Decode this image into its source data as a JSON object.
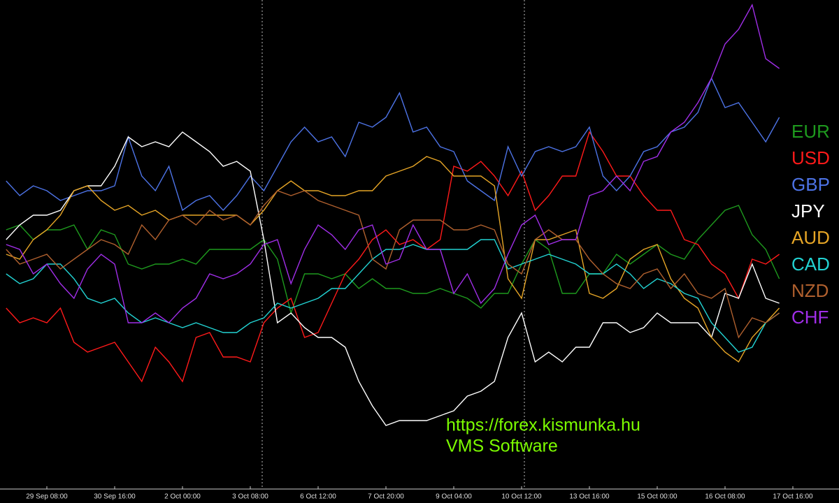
{
  "chart_data": {
    "type": "line",
    "categories": [
      null,
      null,
      null,
      "29 Sep 08:00",
      null,
      null,
      null,
      null,
      "30 Sep 16:00",
      null,
      null,
      null,
      null,
      "2 Oct 00:00",
      null,
      null,
      null,
      null,
      "3 Oct 08:00",
      null,
      null,
      null,
      null,
      "6 Oct 12:00",
      null,
      null,
      null,
      null,
      "7 Oct 20:00",
      null,
      null,
      null,
      null,
      "9 Oct 04:00",
      null,
      null,
      null,
      null,
      "10 Oct 12:00",
      null,
      null,
      null,
      null,
      "13 Oct 16:00",
      null,
      null,
      null,
      null,
      "15 Oct 00:00",
      null,
      null,
      null,
      null,
      "16 Oct 08:00",
      null,
      null,
      null,
      null,
      "17 Oct 16:00"
    ],
    "ylim": [
      0,
      100
    ],
    "series": [
      {
        "name": "EUR",
        "color": "#1e9a1e",
        "values": [
          53,
          54,
          51,
          53,
          53,
          54,
          49,
          53,
          52,
          46,
          45,
          46,
          46,
          47,
          46,
          49,
          49,
          49,
          49,
          51,
          47,
          36,
          44,
          44,
          43,
          44,
          41,
          43,
          41,
          41,
          40,
          40,
          41,
          40,
          39,
          37,
          40,
          40,
          46,
          51,
          49,
          40,
          40,
          44,
          44,
          48,
          46,
          48,
          50,
          48,
          47,
          51,
          54,
          57,
          58,
          52,
          49,
          43,
          null
        ]
      },
      {
        "name": "USD",
        "color": "#ff1a1a",
        "values": [
          37,
          34,
          35,
          34,
          37,
          30,
          28,
          29,
          30,
          26,
          22,
          29,
          26,
          22,
          31,
          32,
          27,
          27,
          26,
          34,
          37,
          39,
          31,
          32,
          38,
          44,
          47,
          51,
          53,
          50,
          51,
          49,
          51,
          66,
          65,
          67,
          64,
          60,
          65,
          57,
          60,
          64,
          64,
          73,
          69,
          64,
          64,
          60,
          57,
          57,
          51,
          50,
          46,
          44,
          39,
          47,
          46,
          48,
          null
        ]
      },
      {
        "name": "GBP",
        "color": "#4d73e6",
        "values": [
          63,
          60,
          62,
          61,
          59,
          60,
          61,
          61,
          62,
          72,
          64,
          61,
          66,
          57,
          59,
          60,
          57,
          60,
          64,
          61,
          66,
          71,
          74,
          71,
          72,
          68,
          75,
          74,
          76,
          81,
          73,
          74,
          70,
          69,
          63,
          61,
          59,
          70,
          64,
          69,
          70,
          69,
          70,
          74,
          64,
          61,
          64,
          69,
          70,
          73,
          74,
          77,
          84,
          78,
          79,
          75,
          71,
          76,
          null
        ]
      },
      {
        "name": "JPY",
        "color": "#ffffff",
        "values": [
          51,
          54,
          56,
          56,
          57,
          61,
          62,
          62,
          66,
          72,
          70,
          71,
          70,
          73,
          71,
          69,
          66,
          67,
          65,
          51,
          34,
          36,
          33,
          31,
          31,
          29,
          22,
          17,
          13,
          14,
          14,
          14,
          15,
          16,
          19,
          20,
          22,
          31,
          36,
          26,
          28,
          26,
          29,
          29,
          34,
          34,
          32,
          33,
          36,
          34,
          34,
          34,
          31,
          40,
          39,
          46,
          39,
          38,
          null
        ]
      },
      {
        "name": "AUD",
        "color": "#e6a526",
        "values": [
          48,
          47,
          51,
          53,
          56,
          61,
          62,
          59,
          57,
          58,
          56,
          57,
          55,
          56,
          56,
          56,
          56,
          56,
          54,
          57,
          61,
          63,
          61,
          61,
          60,
          60,
          61,
          61,
          64,
          65,
          66,
          68,
          67,
          64,
          64,
          64,
          62,
          43,
          39,
          51,
          51,
          52,
          53,
          40,
          39,
          41,
          47,
          49,
          50,
          43,
          39,
          37,
          31,
          28,
          26,
          31,
          34,
          37,
          null
        ]
      },
      {
        "name": "CAD",
        "color": "#22d3d3",
        "values": [
          44,
          42,
          43,
          46,
          46,
          43,
          39,
          38,
          39,
          36,
          34,
          35,
          34,
          33,
          34,
          33,
          32,
          32,
          34,
          35,
          38,
          37,
          38,
          39,
          41,
          41,
          44,
          47,
          49,
          49,
          50,
          49,
          49,
          49,
          49,
          51,
          51,
          45,
          46,
          47,
          48,
          47,
          46,
          44,
          44,
          46,
          44,
          41,
          43,
          42,
          40,
          39,
          34,
          31,
          28,
          29,
          34,
          36,
          null
        ]
      },
      {
        "name": "NZD",
        "color": "#b0602e",
        "values": [
          49,
          46,
          47,
          48,
          45,
          47,
          49,
          51,
          50,
          48,
          54,
          51,
          55,
          56,
          54,
          57,
          55,
          56,
          54,
          58,
          61,
          60,
          61,
          59,
          58,
          57,
          56,
          47,
          45,
          53,
          55,
          55,
          55,
          53,
          53,
          54,
          53,
          46,
          44,
          51,
          53,
          51,
          51,
          47,
          44,
          42,
          41,
          44,
          45,
          41,
          44,
          40,
          39,
          41,
          31,
          35,
          34,
          36,
          null
        ]
      },
      {
        "name": "CHF",
        "color": "#a02ee8",
        "values": [
          50,
          49,
          44,
          46,
          42,
          39,
          45,
          48,
          46,
          34,
          34,
          36,
          34,
          37,
          39,
          44,
          43,
          44,
          46,
          50,
          51,
          42,
          49,
          54,
          52,
          49,
          53,
          54,
          46,
          47,
          54,
          49,
          49,
          40,
          44,
          38,
          41,
          48,
          54,
          56,
          50,
          51,
          51,
          60,
          61,
          64,
          61,
          67,
          68,
          73,
          75,
          79,
          84,
          91,
          94,
          99,
          88,
          86,
          null
        ]
      }
    ],
    "annotations": [
      "https://forex.kismunka.hu",
      "VMS Software"
    ]
  }
}
